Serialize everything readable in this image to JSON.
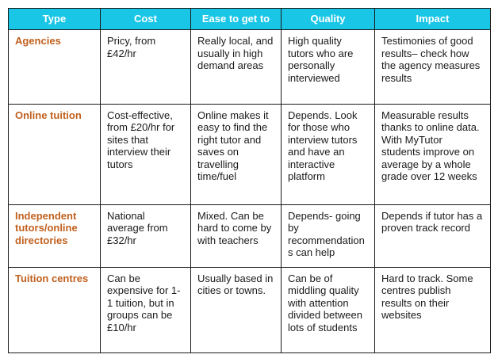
{
  "headers": [
    "Type",
    "Cost",
    "Ease to get to",
    "Quality",
    "Impact"
  ],
  "rows": [
    {
      "type": "Agencies",
      "cost": "Pricy, from £42/hr",
      "ease": "Really local, and usually in high demand areas",
      "quality": "High quality tutors who are personally interviewed",
      "impact": "Testimonies of good results– check how the agency measures results"
    },
    {
      "type": "Online tuition",
      "cost": "Cost-effective, from £20/hr for sites that interview their tutors",
      "ease": "Online makes it easy to find the right tutor and saves on travelling time/fuel",
      "quality": "Depends. Look for those who interview tutors and have an interactive platform",
      "impact": "Measurable results thanks to online data. With MyTutor students improve on average by a whole grade over 12 weeks"
    },
    {
      "type": "Independent tutors/online directories",
      "cost": "National average from £32/hr",
      "ease": "Mixed. Can be hard to come by with teachers",
      "quality": "Depends- going by recommendations can help",
      "impact": "Depends if tutor has a proven track record"
    },
    {
      "type": "Tuition centres",
      "cost": "Can be expensive for 1-1 tuition, but in groups can be £10/hr",
      "ease": "Usually based in cities or towns.",
      "quality": "Can be of middling quality with attention divided between lots of students",
      "impact": "Hard to track. Some centres publish results on their websites"
    }
  ]
}
